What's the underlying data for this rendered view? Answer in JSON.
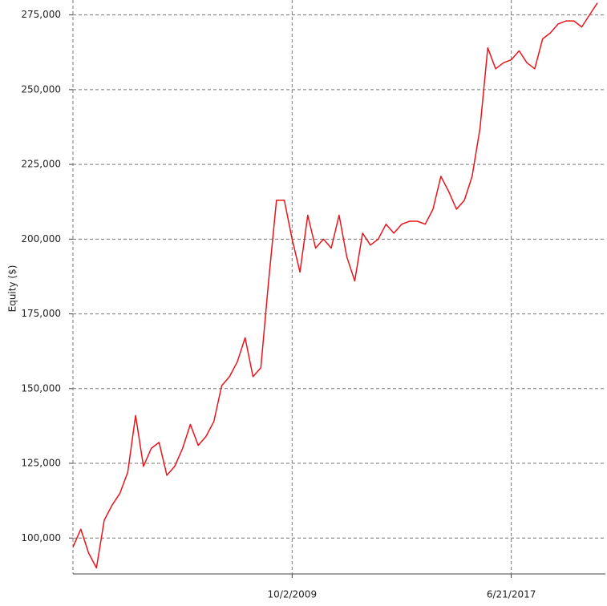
{
  "chart_data": {
    "type": "line",
    "ylabel": "Equity ($)",
    "categories": [
      null,
      null,
      null,
      null,
      null,
      null,
      null,
      null,
      null,
      null,
      null,
      null,
      null,
      null,
      null,
      null,
      null,
      null,
      null,
      null,
      null,
      null,
      null,
      null,
      null,
      null,
      null,
      null,
      "10/2/2009",
      null,
      null,
      null,
      null,
      null,
      null,
      null,
      null,
      null,
      null,
      null,
      null,
      null,
      null,
      null,
      null,
      null,
      null,
      null,
      null,
      null,
      null,
      null,
      null,
      null,
      null,
      null,
      "6/21/2017",
      null,
      null,
      null,
      null,
      null,
      null,
      null,
      null,
      null,
      null,
      null
    ],
    "series": [
      {
        "color": "#e8141b",
        "values": [
          97000,
          103000,
          95000,
          90000,
          106000,
          111000,
          115000,
          122000,
          141000,
          124000,
          130000,
          132000,
          121000,
          124000,
          130000,
          138000,
          131000,
          134000,
          139000,
          151000,
          154000,
          159000,
          167000,
          154000,
          157000,
          186000,
          213000,
          213000,
          200000,
          189000,
          208000,
          197000,
          200000,
          197000,
          208000,
          194000,
          186000,
          202000,
          198000,
          200000,
          205000,
          202000,
          205000,
          206000,
          206000,
          205000,
          210000,
          221000,
          216000,
          210000,
          213000,
          221000,
          237000,
          264000,
          257000,
          259000,
          260000,
          263000,
          259000,
          257000,
          267000,
          269000,
          272000,
          273000,
          273000,
          271000,
          275000,
          279000
        ]
      }
    ],
    "ylim": [
      88000,
      280000
    ],
    "yticks": [
      {
        "value": 100000,
        "label": "100,000"
      },
      {
        "value": 125000,
        "label": "125,000"
      },
      {
        "value": 150000,
        "label": "150,000"
      },
      {
        "value": 175000,
        "label": "175,000"
      },
      {
        "value": 200000,
        "label": "200,000"
      },
      {
        "value": 225000,
        "label": "225,000"
      },
      {
        "value": 250000,
        "label": "250,000"
      },
      {
        "value": 275000,
        "label": "275,000"
      }
    ],
    "grid": true
  }
}
